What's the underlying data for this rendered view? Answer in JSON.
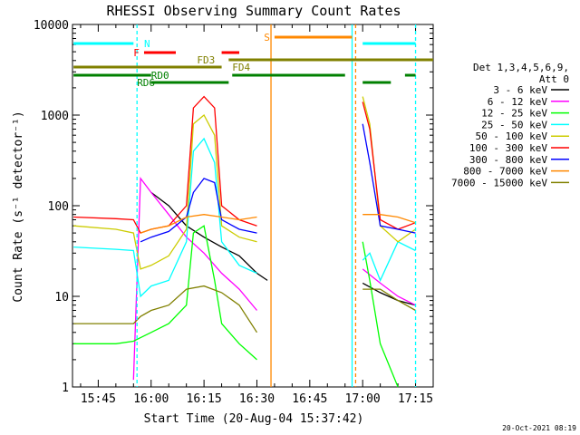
{
  "chart_data": {
    "type": "line",
    "title": "RHESSI Observing Summary Count Rates",
    "xlabel": "Start Time (20-Aug-04 15:37:42)",
    "ylabel": "Count Rate (s⁻¹ detector⁻¹)",
    "y_scale": "log",
    "ylim": [
      1,
      10000
    ],
    "xlim": [
      "15:37:42",
      "17:20:00"
    ],
    "x_tick_labels": [
      "15:45",
      "16:00",
      "16:15",
      "16:30",
      "16:45",
      "17:00",
      "17:15"
    ],
    "y_tick_labels": [
      "1",
      "10",
      "100",
      "1000",
      "10000"
    ],
    "legend": {
      "placement": "right",
      "header_lines": [
        "Det 1,3,4,5,6,9,",
        "Att 0"
      ]
    },
    "series": [
      {
        "name": "3 - 6 keV",
        "color": "#000000",
        "x": [
          "15:38",
          "15:56",
          "16:00",
          "16:05",
          "16:10",
          "16:15",
          "16:20",
          "16:25",
          "16:30",
          "16:33",
          "16:57",
          "16:58",
          "17:00",
          "17:05",
          "17:10",
          "17:15"
        ],
        "y": [
          null,
          null,
          140,
          100,
          60,
          45,
          35,
          28,
          18,
          15,
          null,
          null,
          14,
          11,
          9,
          8
        ]
      },
      {
        "name": "6 - 12 keV",
        "color": "#ff00ff",
        "x": [
          "15:38",
          "15:50",
          "15:55",
          "15:57",
          "16:00",
          "16:05",
          "16:10",
          "16:15",
          "16:20",
          "16:25",
          "16:30",
          "16:33",
          "16:57",
          "17:00",
          "17:05",
          "17:10",
          "17:15"
        ],
        "y": [
          null,
          null,
          1.2,
          200,
          140,
          80,
          45,
          30,
          18,
          12,
          7,
          null,
          null,
          20,
          14,
          10,
          8
        ]
      },
      {
        "name": "12 - 25 keV",
        "color": "#00ff00",
        "x": [
          "15:38",
          "15:50",
          "15:55",
          "15:57",
          "16:00",
          "16:05",
          "16:10",
          "16:12",
          "16:15",
          "16:18",
          "16:20",
          "16:25",
          "16:30",
          "16:33",
          "16:57",
          "16:59",
          "17:00",
          "17:02",
          "17:05",
          "17:10",
          "17:15"
        ],
        "y": [
          3.0,
          3.0,
          3.2,
          3.5,
          4,
          5,
          8,
          50,
          60,
          15,
          5,
          3,
          2,
          null,
          null,
          null,
          40,
          15,
          3,
          1,
          null
        ]
      },
      {
        "name": "25 - 50 keV",
        "color": "#00ffff",
        "x": [
          "15:38",
          "15:50",
          "15:55",
          "15:57",
          "16:00",
          "16:05",
          "16:10",
          "16:12",
          "16:15",
          "16:18",
          "16:20",
          "16:25",
          "16:30",
          "16:33",
          "16:57",
          "16:59",
          "17:00",
          "17:02",
          "17:05",
          "17:10",
          "17:15"
        ],
        "y": [
          35,
          33,
          32,
          10,
          13,
          15,
          40,
          400,
          550,
          300,
          40,
          22,
          18,
          null,
          null,
          null,
          25,
          30,
          15,
          40,
          32
        ]
      },
      {
        "name": "50 - 100 keV",
        "color": "#cccc00",
        "x": [
          "15:38",
          "15:50",
          "15:55",
          "15:57",
          "16:00",
          "16:05",
          "16:10",
          "16:12",
          "16:15",
          "16:18",
          "16:20",
          "16:25",
          "16:30",
          "16:33",
          "16:57",
          "16:59",
          "17:00",
          "17:02",
          "17:05",
          "17:10",
          "17:15"
        ],
        "y": [
          60,
          55,
          50,
          20,
          22,
          28,
          55,
          800,
          1000,
          600,
          60,
          45,
          40,
          null,
          null,
          null,
          1600,
          800,
          60,
          40,
          55
        ]
      },
      {
        "name": "100 - 300 keV",
        "color": "#ff0000",
        "x": [
          "15:38",
          "15:50",
          "15:55",
          "15:57",
          "16:00",
          "16:05",
          "16:10",
          "16:12",
          "16:15",
          "16:18",
          "16:20",
          "16:25",
          "16:30",
          "16:33",
          "16:57",
          "16:59",
          "17:00",
          "17:02",
          "17:05",
          "17:10",
          "17:15"
        ],
        "y": [
          75,
          72,
          70,
          50,
          55,
          60,
          100,
          1200,
          1600,
          1200,
          100,
          70,
          60,
          null,
          null,
          null,
          1400,
          700,
          70,
          55,
          65
        ]
      },
      {
        "name": "300 - 800 keV",
        "color": "#0000ff",
        "x": [
          "15:38",
          "15:50",
          "15:55",
          "15:57",
          "16:00",
          "16:05",
          "16:10",
          "16:12",
          "16:15",
          "16:18",
          "16:20",
          "16:25",
          "16:30",
          "16:33",
          "16:57",
          "16:59",
          "17:00",
          "17:02",
          "17:05",
          "17:10",
          "17:15"
        ],
        "y": [
          null,
          null,
          null,
          40,
          45,
          52,
          75,
          140,
          200,
          180,
          70,
          55,
          50,
          null,
          null,
          null,
          800,
          300,
          60,
          55,
          50
        ]
      },
      {
        "name": "800 - 7000 keV",
        "color": "#ff8800",
        "x": [
          "15:38",
          "15:50",
          "15:55",
          "15:57",
          "16:00",
          "16:05",
          "16:10",
          "16:15",
          "16:20",
          "16:25",
          "16:30",
          "16:33",
          "16:57",
          "17:00",
          "17:05",
          "17:10",
          "17:15"
        ],
        "y": [
          null,
          null,
          null,
          50,
          55,
          60,
          75,
          80,
          75,
          70,
          75,
          null,
          null,
          80,
          80,
          75,
          65
        ]
      },
      {
        "name": "7000 - 15000 keV",
        "color": "#808000",
        "x": [
          "15:38",
          "15:50",
          "15:55",
          "15:57",
          "16:00",
          "16:05",
          "16:10",
          "16:15",
          "16:20",
          "16:25",
          "16:30",
          "16:33",
          "16:57",
          "17:00",
          "17:05",
          "17:10",
          "17:15"
        ],
        "y": [
          5,
          5,
          5,
          6,
          7,
          8,
          12,
          13,
          11,
          8,
          4,
          null,
          null,
          12,
          12,
          9,
          7
        ]
      }
    ],
    "annotations": [
      {
        "label": "N",
        "color": "#00ffff"
      },
      {
        "label": "F",
        "color": "#ff0000"
      },
      {
        "label": "S",
        "color": "#ff8800"
      },
      {
        "label": "FD3",
        "color": "#808000"
      },
      {
        "label": "FD4",
        "color": "#808000"
      },
      {
        "label": "RD0",
        "color": "#008000"
      },
      {
        "label": "RD6",
        "color": "#008000"
      }
    ],
    "footer_text": "20-Oct-2021 08:19"
  }
}
